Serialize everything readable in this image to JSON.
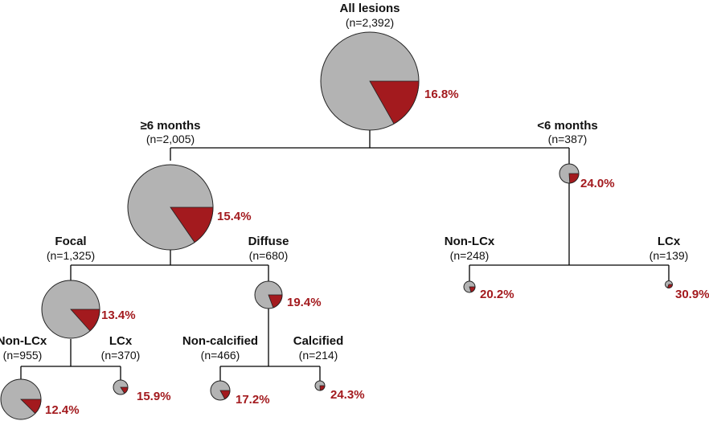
{
  "colors": {
    "pie_rest": "#b3b3b3",
    "pie_event": "#a31a1e",
    "percent_text": "#a31a1e",
    "line": "#000000"
  },
  "nodes": [
    {
      "id": "all",
      "title": "All lesions",
      "n": "(n=2,392)",
      "pct": "16.8%"
    },
    {
      "id": "ge6",
      "title": "≥6 months",
      "n": "(n=2,005)",
      "pct": "15.4%"
    },
    {
      "id": "lt6",
      "title": "<6 months",
      "n": "(n=387)",
      "pct": "24.0%"
    },
    {
      "id": "focal",
      "title": "Focal",
      "n": "(n=1,325)",
      "pct": "13.4%"
    },
    {
      "id": "diffuse",
      "title": "Diffuse",
      "n": "(n=680)",
      "pct": "19.4%"
    },
    {
      "id": "lt6nonlcx",
      "title": "Non-LCx",
      "n": "(n=248)",
      "pct": "20.2%"
    },
    {
      "id": "lt6lcx",
      "title": "LCx",
      "n": "(n=139)",
      "pct": "30.9%"
    },
    {
      "id": "fnonlcx",
      "title": "Non-LCx",
      "n": "(n=955)",
      "pct": "12.4%"
    },
    {
      "id": "flcx",
      "title": "LCx",
      "n": "(n=370)",
      "pct": "15.9%"
    },
    {
      "id": "dnoncalc",
      "title": "Non-calcified",
      "n": "(n=466)",
      "pct": "17.2%"
    },
    {
      "id": "dcalc",
      "title": "Calcified",
      "n": "(n=214)",
      "pct": "24.3%"
    }
  ]
}
